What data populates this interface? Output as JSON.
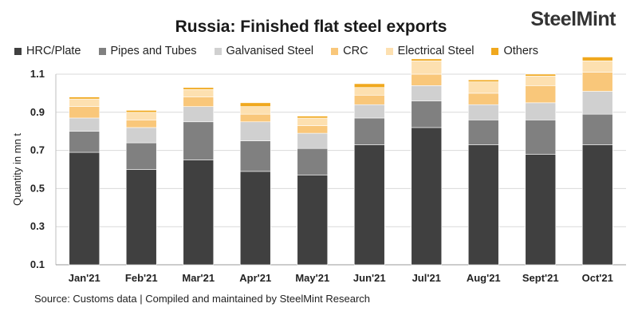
{
  "header": {
    "title": "Russia: Finished flat steel exports",
    "logo_main": "SteelMint",
    "logo_dot_color": "#e5a93b"
  },
  "footer": {
    "source": "Source:  Customs data | Compiled and maintained by SteelMint Research"
  },
  "chart_data": {
    "type": "bar",
    "stacked": true,
    "title": "Russia: Finished flat steel exports",
    "xlabel": "",
    "ylabel": "Quantity in mn t",
    "ylim": [
      0.1,
      1.1
    ],
    "yticks": [
      "0.1",
      "0.3",
      "0.5",
      "0.7",
      "0.9",
      "1.1"
    ],
    "grid": true,
    "legend_position": "top",
    "categories": [
      "Jan'21",
      "Feb'21",
      "Mar'21",
      "Apr'21",
      "May'21",
      "Jun'21",
      "Jul'21",
      "Aug'21",
      "Sept'21",
      "Oct'21"
    ],
    "series": [
      {
        "name": "HRC/Plate",
        "color": "#404040",
        "values": [
          0.59,
          0.5,
          0.55,
          0.49,
          0.47,
          0.63,
          0.72,
          0.63,
          0.58,
          0.63
        ]
      },
      {
        "name": "Pipes and Tubes",
        "color": "#808080",
        "values": [
          0.11,
          0.14,
          0.2,
          0.16,
          0.14,
          0.14,
          0.14,
          0.13,
          0.18,
          0.16
        ]
      },
      {
        "name": "Galvanised Steel",
        "color": "#d0d0d0",
        "values": [
          0.07,
          0.08,
          0.08,
          0.1,
          0.08,
          0.07,
          0.08,
          0.08,
          0.09,
          0.12
        ]
      },
      {
        "name": "CRC",
        "color": "#f9c77a",
        "values": [
          0.06,
          0.04,
          0.05,
          0.04,
          0.04,
          0.05,
          0.06,
          0.06,
          0.09,
          0.1
        ]
      },
      {
        "name": "Electrical Steel",
        "color": "#fde0b0",
        "values": [
          0.04,
          0.04,
          0.04,
          0.04,
          0.04,
          0.04,
          0.07,
          0.06,
          0.05,
          0.06
        ]
      },
      {
        "name": "Others",
        "color": "#f0a81e",
        "values": [
          0.01,
          0.01,
          0.01,
          0.02,
          0.01,
          0.02,
          0.01,
          0.01,
          0.01,
          0.02
        ]
      }
    ]
  }
}
